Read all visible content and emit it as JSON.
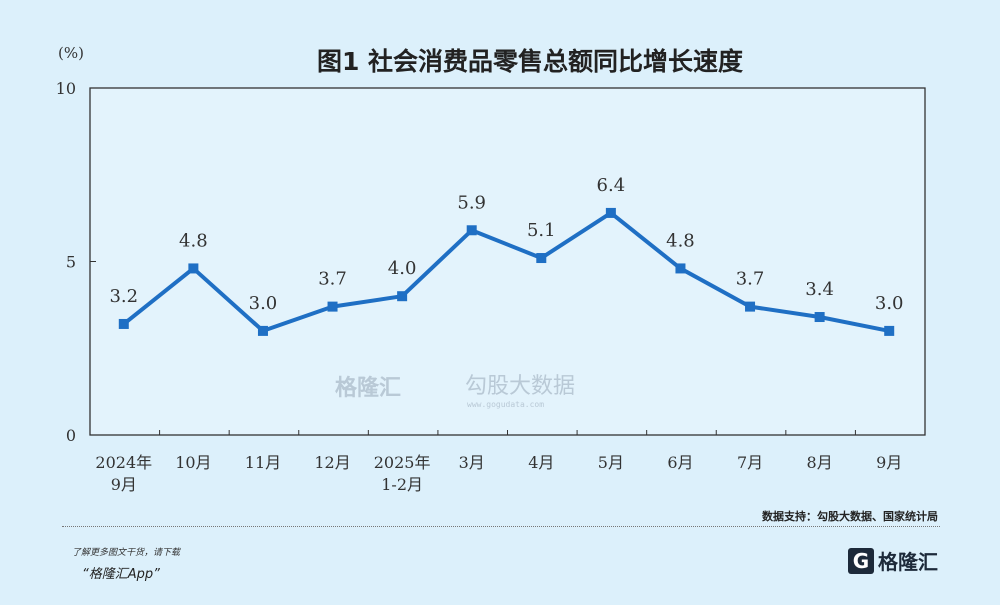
{
  "chart_data": {
    "type": "line",
    "title": "图1  社会消费品零售总额同比增长速度",
    "ylabel": "(%)",
    "ylim": [
      0,
      10
    ],
    "yticks": [
      "0",
      "5",
      "10"
    ],
    "categories": [
      [
        "2024年",
        "9月"
      ],
      [
        "10月"
      ],
      [
        "11月"
      ],
      [
        "12月"
      ],
      [
        "2025年",
        "1-2月"
      ],
      [
        "3月"
      ],
      [
        "4月"
      ],
      [
        "5月"
      ],
      [
        "6月"
      ],
      [
        "7月"
      ],
      [
        "8月"
      ],
      [
        "9月"
      ]
    ],
    "values": [
      3.2,
      4.8,
      3.0,
      3.7,
      4.0,
      5.9,
      5.1,
      6.4,
      4.8,
      3.7,
      3.4,
      3.0
    ],
    "labels": [
      "3.2",
      "4.8",
      "3.0",
      "3.7",
      "4.0",
      "5.9",
      "5.1",
      "6.4",
      "4.8",
      "3.7",
      "3.4",
      "3.0"
    ],
    "grid": false,
    "color": "#1f6fc4"
  },
  "watermark": {
    "brand": "格隆汇",
    "data": "勾股大数据",
    "url": "www.gogudata.com"
  },
  "footer": {
    "source": "数据支持：勾股大数据、国家统计局",
    "promo_line1": "了解更多图文干货，请下载",
    "promo_line2": "“格隆汇App”",
    "logo_letter": "G",
    "logo_text": "格隆汇"
  }
}
